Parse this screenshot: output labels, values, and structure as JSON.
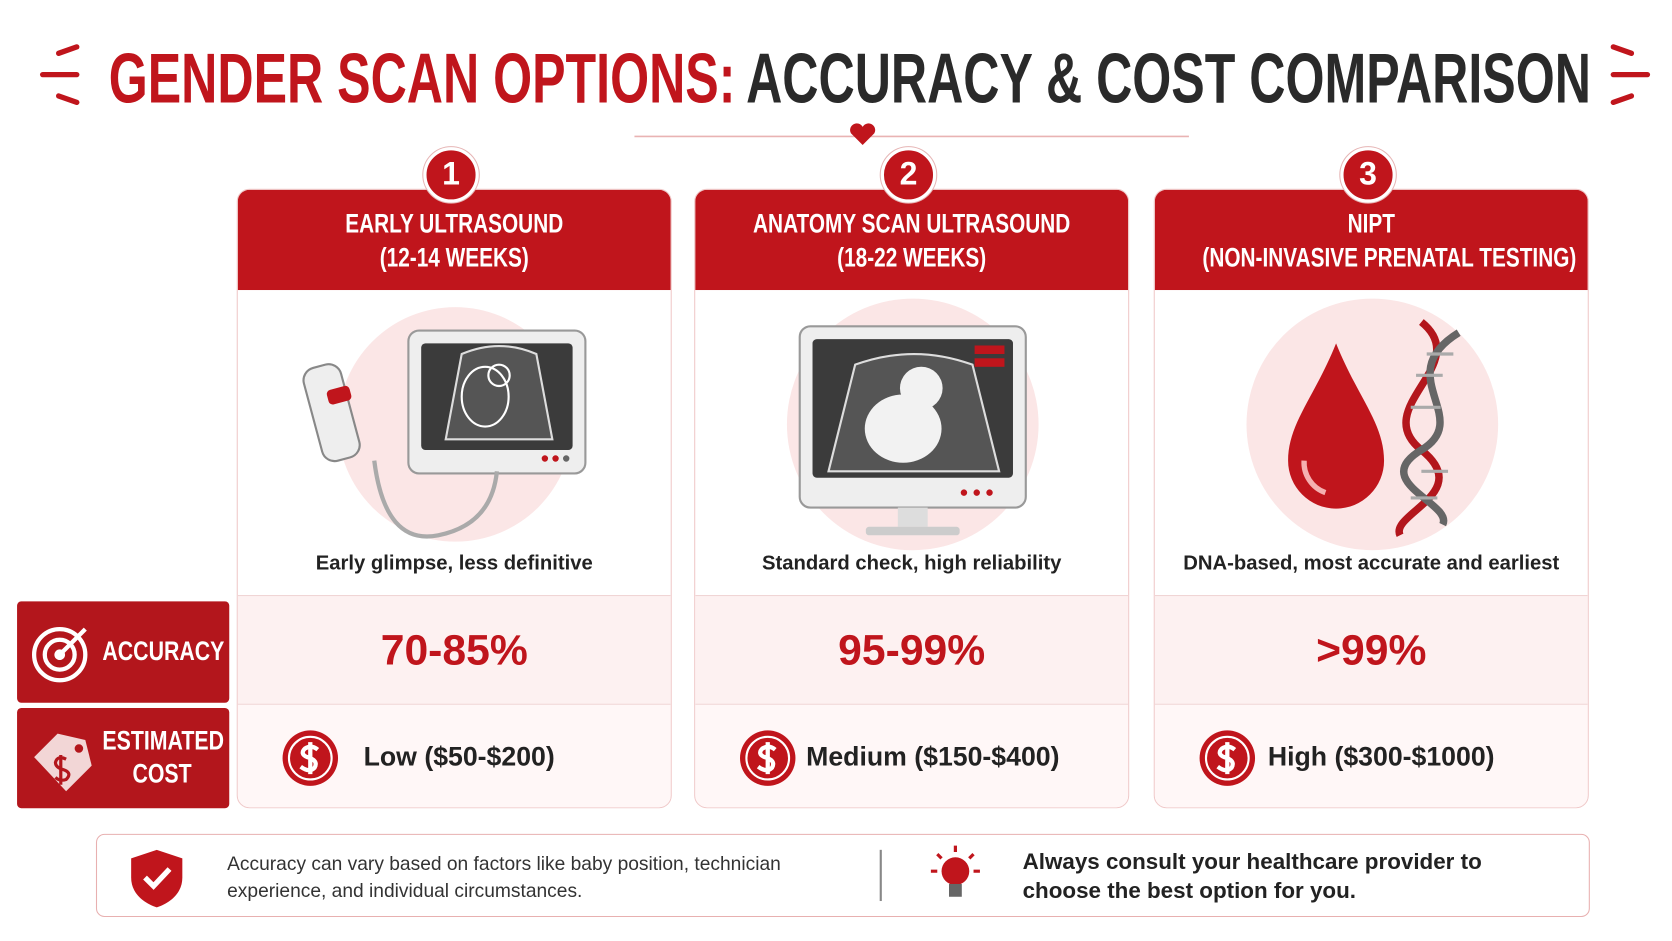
{
  "header": {
    "title_part1": "GENDER SCAN OPTIONS:",
    "title_part2": "ACCURACY & COST COMPARISON"
  },
  "row_labels": {
    "accuracy": "ACCURACY",
    "cost": "ESTIMATED COST"
  },
  "options": [
    {
      "number": "1",
      "name": "EARLY ULTRASOUND",
      "timing": "(12-14 WEEKS)",
      "description": "Early glimpse, less definitive",
      "accuracy": "70-85%",
      "cost": "Low ($50-$200)"
    },
    {
      "number": "2",
      "name": "ANATOMY SCAN ULTRASOUND",
      "timing": "(18-22 WEEKS)",
      "description": "Standard check, high reliability",
      "accuracy": "95-99%",
      "cost": "Medium ($150-$400)"
    },
    {
      "number": "3",
      "name": "NIPT",
      "timing": "(NON-INVASIVE PRENATAL TESTING)",
      "description": "DNA-based, most accurate and earliest",
      "accuracy": ">99%",
      "cost": "High ($300-$1000)"
    }
  ],
  "footer": {
    "note": "Accuracy can vary based on factors like baby position, technician experience, and individual circumstances.",
    "tip": "Always consult your healthcare provider to choose the best option for you."
  }
}
